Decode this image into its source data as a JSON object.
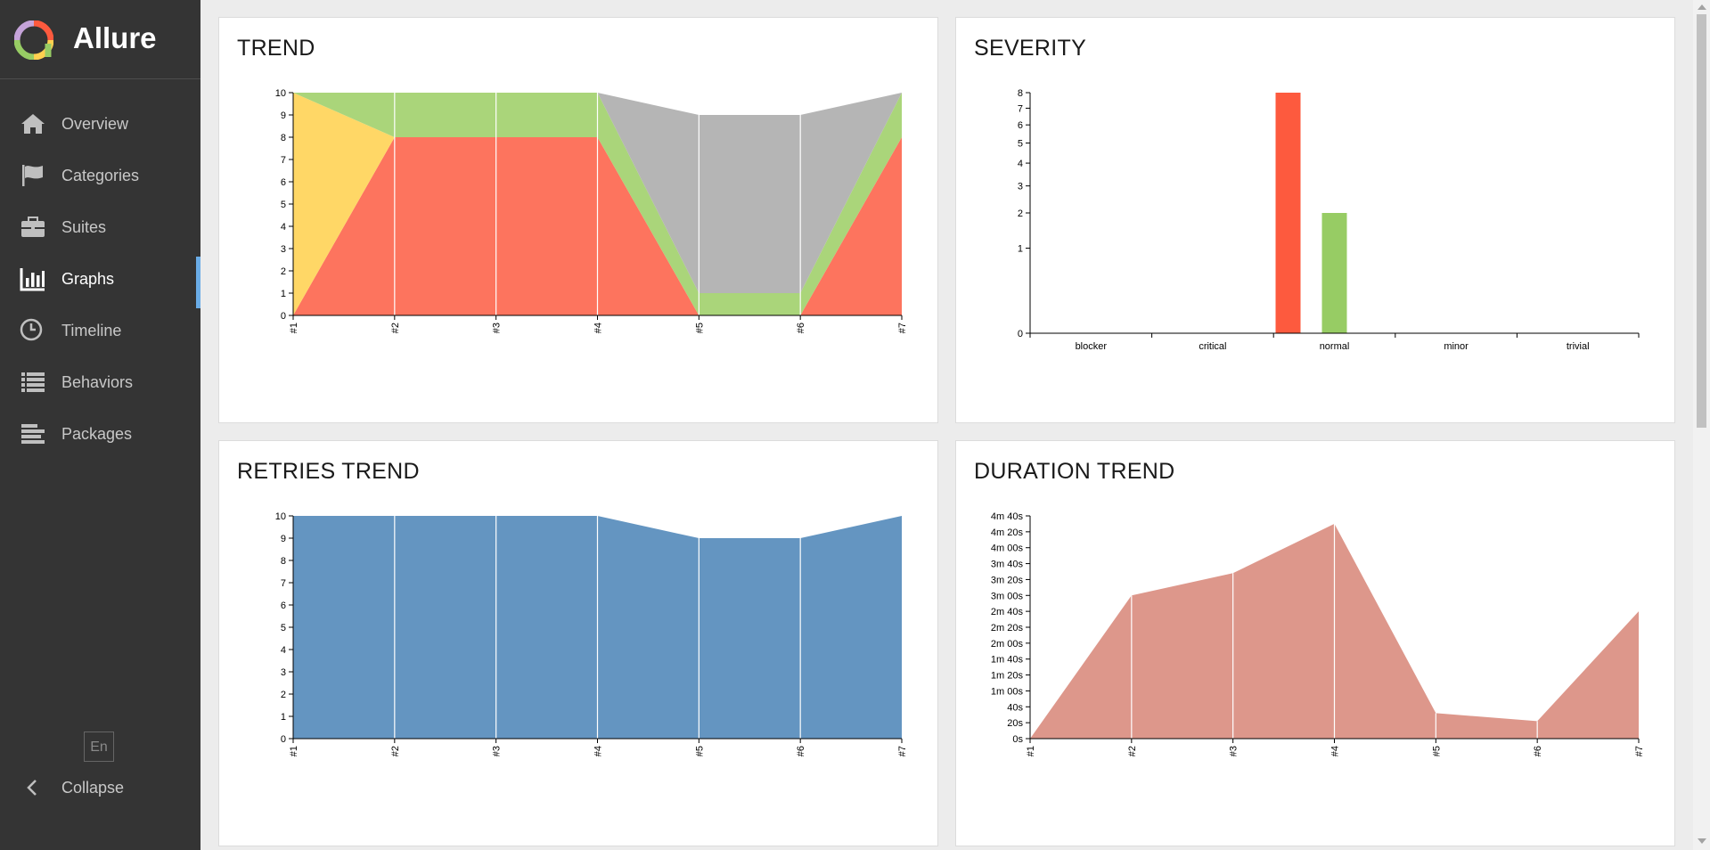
{
  "app": {
    "name": "Allure"
  },
  "sidebar": {
    "items": [
      {
        "label": "Overview",
        "icon": "home-icon"
      },
      {
        "label": "Categories",
        "icon": "flag-icon"
      },
      {
        "label": "Suites",
        "icon": "briefcase-icon"
      },
      {
        "label": "Graphs",
        "icon": "bar-chart-icon",
        "active": true
      },
      {
        "label": "Timeline",
        "icon": "clock-icon"
      },
      {
        "label": "Behaviors",
        "icon": "list-icon"
      },
      {
        "label": "Packages",
        "icon": "align-left-icon"
      }
    ],
    "language": "En",
    "collapse_label": "Collapse"
  },
  "colors": {
    "failed": "#fd745e",
    "broken": "#ffd766",
    "passed": "#aad57a",
    "skipped": "#b5b5b5",
    "severity_normal_failed": "#fd5a3e",
    "severity_normal_passed": "#97cc64",
    "retries": "#6495c1",
    "duration": "#dd978b"
  },
  "widgets": {
    "trend": {
      "title": "TREND"
    },
    "severity": {
      "title": "SEVERITY"
    },
    "retries": {
      "title": "RETRIES TREND"
    },
    "duration": {
      "title": "DURATION TREND"
    }
  },
  "chart_data": [
    {
      "id": "trend",
      "type": "area",
      "title": "TREND",
      "stacked": true,
      "x": [
        "#1",
        "#2",
        "#3",
        "#4",
        "#5",
        "#6",
        "#7"
      ],
      "series": [
        {
          "key": "failed",
          "values": [
            0,
            8,
            8,
            8,
            0,
            0,
            8
          ]
        },
        {
          "key": "broken",
          "values": [
            10,
            0,
            0,
            0,
            0,
            0,
            0
          ]
        },
        {
          "key": "passed",
          "values": [
            0,
            2,
            2,
            2,
            1,
            1,
            2
          ]
        },
        {
          "key": "skipped",
          "values": [
            0,
            0,
            0,
            0,
            8,
            8,
            0
          ]
        }
      ],
      "ylim": [
        0,
        10
      ],
      "yticks": [
        0,
        1,
        2,
        3,
        4,
        5,
        6,
        7,
        8,
        9,
        10
      ]
    },
    {
      "id": "severity",
      "type": "bar",
      "title": "SEVERITY",
      "categories": [
        "blocker",
        "critical",
        "normal",
        "minor",
        "trivial"
      ],
      "series": [
        {
          "key": "failed",
          "values": [
            0,
            0,
            8,
            0,
            0
          ]
        },
        {
          "key": "passed",
          "values": [
            0,
            0,
            2,
            0,
            0
          ]
        }
      ],
      "yscale": "sqrt",
      "yticks": [
        0,
        1,
        2,
        3,
        4,
        5,
        6,
        7,
        8
      ]
    },
    {
      "id": "retries",
      "type": "area",
      "title": "RETRIES TREND",
      "x": [
        "#1",
        "#2",
        "#3",
        "#4",
        "#5",
        "#6",
        "#7"
      ],
      "values": [
        10,
        10,
        10,
        10,
        9,
        9,
        10
      ],
      "ylim": [
        0,
        10
      ],
      "yticks": [
        0,
        1,
        2,
        3,
        4,
        5,
        6,
        7,
        8,
        9,
        10
      ]
    },
    {
      "id": "duration",
      "type": "area",
      "title": "DURATION TREND",
      "x": [
        "#1",
        "#2",
        "#3",
        "#4",
        "#5",
        "#6",
        "#7"
      ],
      "values": [
        0,
        180,
        208,
        270,
        32,
        22,
        160
      ],
      "unit": "seconds",
      "ylim": [
        0,
        280
      ],
      "yticks": [
        0,
        20,
        40,
        60,
        80,
        100,
        120,
        140,
        160,
        180,
        200,
        220,
        240,
        260,
        280
      ],
      "ytick_labels": [
        "0s",
        "20s",
        "40s",
        "1m 00s",
        "1m 20s",
        "1m 40s",
        "2m 00s",
        "2m 20s",
        "2m 40s",
        "3m 00s",
        "3m 20s",
        "3m 40s",
        "4m 00s",
        "4m 20s",
        "4m 40s"
      ]
    }
  ]
}
